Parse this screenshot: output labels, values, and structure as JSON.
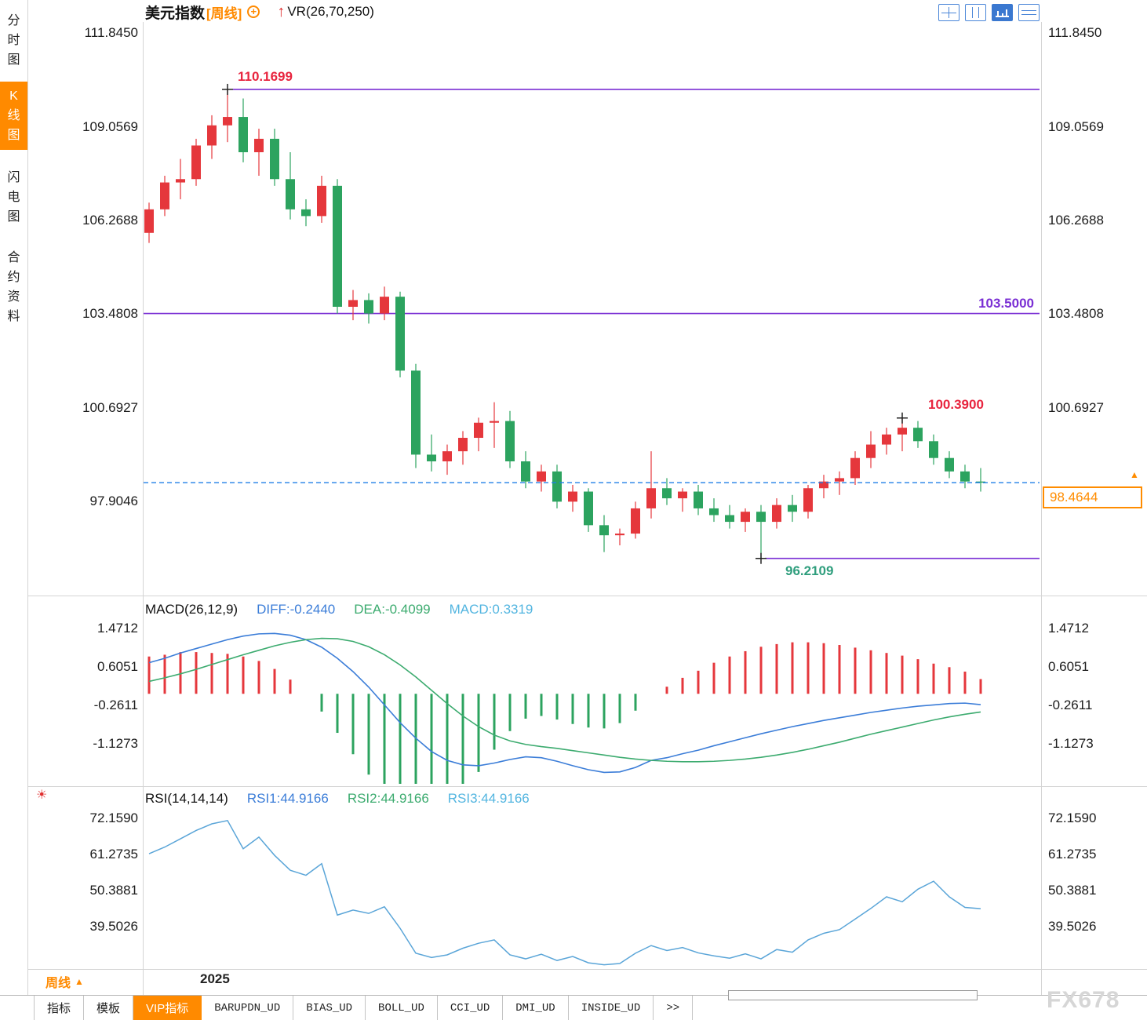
{
  "header": {
    "title": "美元指数",
    "period_tag": "[周线]",
    "indicator_label": "VR(26,70,250)"
  },
  "icons": {
    "plus": "+",
    "up_arrow": "↑",
    "triangle_up": "▲",
    "sun": "☀"
  },
  "toolbar": {
    "icons": [
      "layout-grid-icon",
      "layout-columns-icon",
      "layout-kline-active-icon",
      "layout-rows-icon"
    ]
  },
  "sidebar": {
    "items": [
      {
        "label": "分时图",
        "active": false
      },
      {
        "label": "K线图",
        "active": true
      },
      {
        "label": "闪电图",
        "active": false
      },
      {
        "label": "合约资料",
        "active": false
      }
    ]
  },
  "main_chart": {
    "ticks": [
      {
        "label": "111.8450",
        "value": 111.845
      },
      {
        "label": "109.0569",
        "value": 109.0569
      },
      {
        "label": "106.2688",
        "value": 106.2688
      },
      {
        "label": "103.4808",
        "value": 103.4808
      },
      {
        "label": "100.6927",
        "value": 100.6927
      },
      {
        "label": "97.9046",
        "value": 97.9046
      }
    ],
    "annotations": {
      "swing_high": {
        "label": "110.1699",
        "value": 110.1699,
        "candle_index": 5
      },
      "level_line": {
        "label": "103.5000",
        "value": 103.5
      },
      "swing_low": {
        "label": "96.2109",
        "value": 96.2109,
        "candle_index": 39
      },
      "recent_high": {
        "label": "100.3900",
        "value": 100.39,
        "candle_index": 48
      },
      "last_price": {
        "label": "98.4644",
        "value": 98.4644
      }
    }
  },
  "macd_panel": {
    "title": "MACD(26,12,9)",
    "diff_label": "DIFF:-0.2440",
    "dea_label": "DEA:-0.4099",
    "macd_label": "MACD:0.3319",
    "ticks": [
      {
        "label": "1.4712",
        "value": 1.4712
      },
      {
        "label": "0.6051",
        "value": 0.6051
      },
      {
        "label": "-0.2611",
        "value": -0.2611
      },
      {
        "label": "-1.1273",
        "value": -1.1273
      }
    ]
  },
  "rsi_panel": {
    "title": "RSI(14,14,14)",
    "rsi1_label": "RSI1:44.9166",
    "rsi2_label": "RSI2:44.9166",
    "rsi3_label": "RSI3:44.9166",
    "ticks": [
      {
        "label": "72.1590",
        "value": 72.159
      },
      {
        "label": "61.2735",
        "value": 61.2735
      },
      {
        "label": "50.3881",
        "value": 50.3881
      },
      {
        "label": "39.5026",
        "value": 39.5026
      }
    ]
  },
  "bottom": {
    "period_label": "周线",
    "x_axis_label": "2025",
    "tabs": [
      {
        "label": "指标"
      },
      {
        "label": "模板"
      },
      {
        "label": "VIP指标",
        "active": true
      },
      {
        "label": "BARUPDN_UD"
      },
      {
        "label": "BIAS_UD"
      },
      {
        "label": "BOLL_UD"
      },
      {
        "label": "CCI_UD"
      },
      {
        "label": "DMI_UD"
      },
      {
        "label": "INSIDE_UD"
      },
      {
        "label": ">>"
      }
    ]
  },
  "watermark": "FX678",
  "colors": {
    "up": "#e5373c",
    "down": "#2ca35f",
    "purple_line": "#7a2fd4",
    "dashed_blue": "#1f7fe8",
    "accent_orange": "#ff8a00",
    "diff_blue": "#3b7dd8",
    "dea_green": "#3cab6f",
    "macd_cyan": "#52b5e0",
    "rsi_line": "#5aa5d8"
  },
  "chart_data": {
    "type": "candlestick",
    "title": "美元指数 周线 (US Dollar Index weekly) with MACD and RSI sub-panels",
    "x_axis_year_label": "2025",
    "ylim": [
      95.2,
      112.13
    ],
    "candles_ohlc": [
      [
        105.9,
        106.8,
        105.6,
        106.6
      ],
      [
        106.6,
        107.6,
        106.4,
        107.4
      ],
      [
        107.4,
        108.1,
        106.9,
        107.5
      ],
      [
        107.5,
        108.7,
        107.3,
        108.5
      ],
      [
        108.5,
        109.4,
        108.1,
        109.1
      ],
      [
        109.1,
        110.17,
        108.6,
        109.35
      ],
      [
        109.35,
        109.9,
        108.0,
        108.3
      ],
      [
        108.3,
        109.0,
        107.6,
        108.7
      ],
      [
        108.7,
        109.0,
        107.3,
        107.5
      ],
      [
        107.5,
        108.3,
        106.3,
        106.6
      ],
      [
        106.6,
        106.9,
        106.1,
        106.4
      ],
      [
        106.4,
        107.6,
        106.2,
        107.3
      ],
      [
        107.3,
        107.5,
        103.5,
        103.7
      ],
      [
        103.7,
        104.2,
        103.3,
        103.9
      ],
      [
        103.9,
        104.1,
        103.2,
        103.5
      ],
      [
        103.5,
        104.3,
        103.3,
        104.0
      ],
      [
        104.0,
        104.15,
        101.6,
        101.8
      ],
      [
        101.8,
        102.0,
        98.9,
        99.3
      ],
      [
        99.3,
        99.9,
        98.8,
        99.1
      ],
      [
        99.1,
        99.6,
        98.7,
        99.4
      ],
      [
        99.4,
        100.0,
        99.0,
        99.8
      ],
      [
        99.8,
        100.4,
        99.4,
        100.25
      ],
      [
        100.25,
        100.86,
        99.5,
        100.3
      ],
      [
        100.3,
        100.6,
        98.9,
        99.1
      ],
      [
        99.1,
        99.4,
        98.3,
        98.5
      ],
      [
        98.5,
        99.0,
        98.2,
        98.8
      ],
      [
        98.8,
        99.0,
        97.7,
        97.9
      ],
      [
        97.9,
        98.4,
        97.6,
        98.2
      ],
      [
        98.2,
        98.3,
        97.0,
        97.2
      ],
      [
        97.2,
        97.5,
        96.4,
        96.9
      ],
      [
        96.9,
        97.1,
        96.6,
        96.95
      ],
      [
        96.95,
        97.9,
        96.8,
        97.7
      ],
      [
        97.7,
        99.4,
        97.4,
        98.3
      ],
      [
        98.3,
        98.6,
        97.8,
        98.0
      ],
      [
        98.0,
        98.3,
        97.6,
        98.2
      ],
      [
        98.2,
        98.4,
        97.5,
        97.7
      ],
      [
        97.7,
        98.0,
        97.3,
        97.5
      ],
      [
        97.5,
        97.8,
        97.1,
        97.3
      ],
      [
        97.3,
        97.7,
        97.0,
        97.6
      ],
      [
        97.6,
        97.8,
        96.2109,
        97.3
      ],
      [
        97.3,
        98.0,
        97.1,
        97.8
      ],
      [
        97.8,
        98.1,
        97.3,
        97.6
      ],
      [
        97.6,
        98.4,
        97.4,
        98.3
      ],
      [
        98.3,
        98.7,
        98.0,
        98.5
      ],
      [
        98.5,
        98.8,
        98.1,
        98.6
      ],
      [
        98.6,
        99.4,
        98.4,
        99.2
      ],
      [
        99.2,
        100.0,
        98.9,
        99.6
      ],
      [
        99.6,
        100.1,
        99.3,
        99.9
      ],
      [
        99.9,
        100.39,
        99.4,
        100.1
      ],
      [
        100.1,
        100.3,
        99.5,
        99.7
      ],
      [
        99.7,
        99.9,
        99.0,
        99.2
      ],
      [
        99.2,
        99.4,
        98.6,
        98.8
      ],
      [
        98.8,
        99.0,
        98.3,
        98.5
      ],
      [
        98.5,
        98.9,
        98.2,
        98.4644
      ]
    ],
    "indicators": {
      "macd": {
        "params": [
          26,
          12,
          9
        ],
        "ylim": [
          -2.046,
          2.108
        ],
        "hist_rule": "hist = 2*(diff-dea), clipped to panel",
        "diff": [
          0.7,
          0.8,
          0.92,
          1.02,
          1.12,
          1.22,
          1.3,
          1.35,
          1.36,
          1.32,
          1.22,
          1.05,
          0.8,
          0.5,
          0.15,
          -0.25,
          -0.65,
          -1.0,
          -1.3,
          -1.5,
          -1.6,
          -1.62,
          -1.56,
          -1.48,
          -1.42,
          -1.44,
          -1.52,
          -1.62,
          -1.71,
          -1.77,
          -1.76,
          -1.66,
          -1.5,
          -1.44,
          -1.35,
          -1.27,
          -1.17,
          -1.08,
          -0.99,
          -0.9,
          -0.82,
          -0.74,
          -0.67,
          -0.6,
          -0.54,
          -0.48,
          -0.42,
          -0.37,
          -0.32,
          -0.28,
          -0.25,
          -0.22,
          -0.21,
          -0.244
        ],
        "dea": [
          0.28,
          0.36,
          0.45,
          0.55,
          0.66,
          0.77,
          0.88,
          0.98,
          1.08,
          1.16,
          1.22,
          1.25,
          1.24,
          1.18,
          1.06,
          0.88,
          0.65,
          0.38,
          0.08,
          -0.22,
          -0.5,
          -0.74,
          -0.93,
          -1.06,
          -1.14,
          -1.19,
          -1.23,
          -1.28,
          -1.33,
          -1.38,
          -1.43,
          -1.47,
          -1.5,
          -1.52,
          -1.53,
          -1.53,
          -1.52,
          -1.5,
          -1.47,
          -1.43,
          -1.38,
          -1.32,
          -1.25,
          -1.17,
          -1.09,
          -1.0,
          -0.91,
          -0.83,
          -0.75,
          -0.67,
          -0.59,
          -0.52,
          -0.46,
          -0.4099
        ],
        "last": {
          "diff": -0.244,
          "dea": -0.4099,
          "macd": 0.3319
        }
      },
      "rsi": {
        "params": [
          14,
          14,
          14
        ],
        "ylim": [
          26.97,
          79.97
        ],
        "values": [
          61.5,
          63.5,
          66.0,
          68.5,
          70.5,
          71.5,
          63.0,
          66.5,
          61.0,
          56.5,
          55.0,
          58.5,
          43.0,
          44.5,
          43.5,
          45.5,
          39.0,
          31.5,
          30.2,
          31.0,
          33.0,
          34.5,
          35.5,
          31.0,
          29.8,
          31.2,
          29.3,
          30.5,
          28.6,
          28.0,
          28.4,
          31.5,
          33.8,
          32.3,
          33.2,
          31.6,
          30.7,
          30.0,
          31.3,
          29.8,
          32.6,
          31.8,
          35.5,
          37.5,
          38.6,
          41.8,
          45.0,
          48.5,
          47.0,
          50.8,
          53.2,
          48.5,
          45.3,
          44.9166
        ],
        "last": 44.9166
      }
    }
  }
}
